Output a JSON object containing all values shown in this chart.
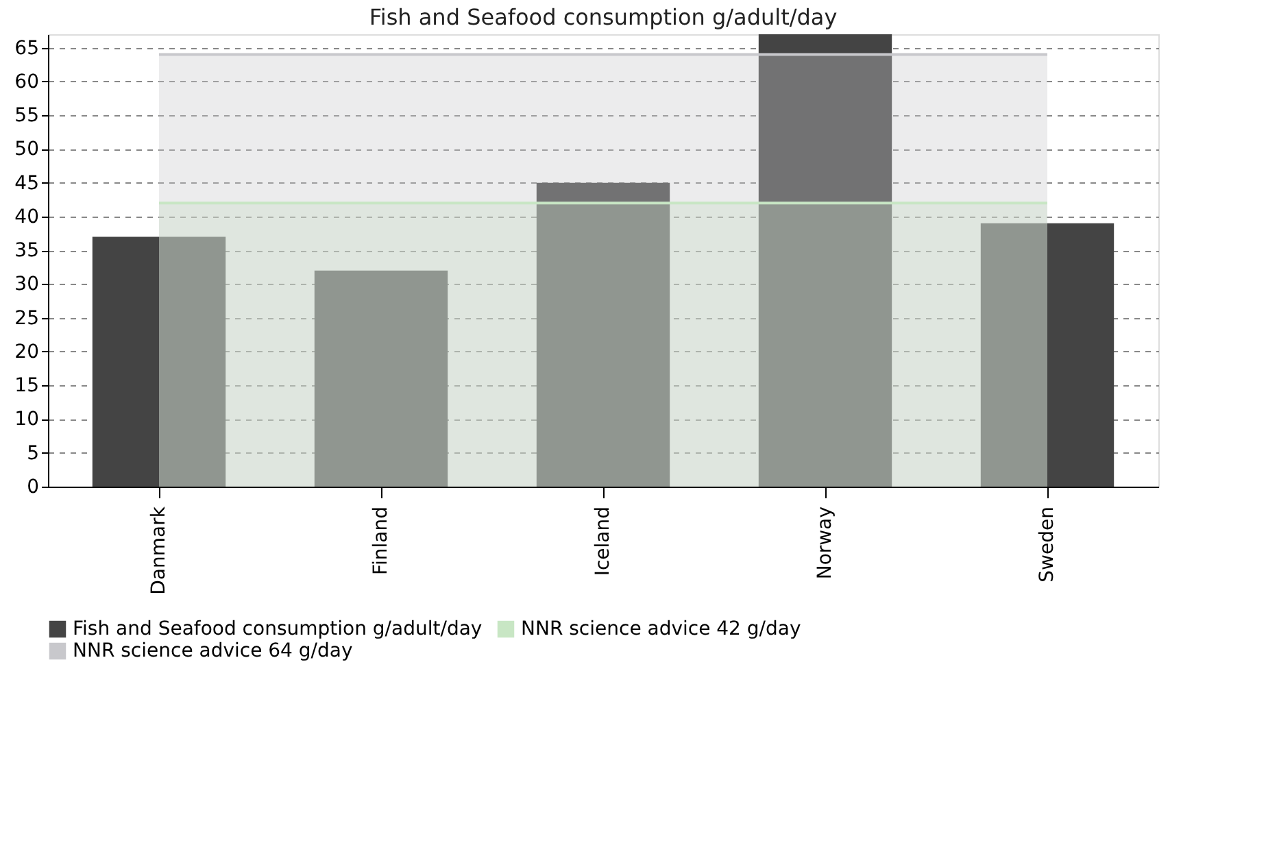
{
  "chart_data": {
    "type": "bar",
    "title": "Fish and Seafood consumption g/adult/day",
    "categories": [
      "Danmark",
      "Finland",
      "Iceland",
      "Norway",
      "Sweden"
    ],
    "series": [
      {
        "name": "Fish and Seafood consumption g/adult/day",
        "color": "#444444",
        "values": [
          37,
          32,
          45,
          67,
          39
        ]
      }
    ],
    "bands": [
      {
        "axis": "y",
        "from": 0,
        "to": 42,
        "label": "NNR science advice 42 g/day",
        "color": "#c8e6c4"
      },
      {
        "axis": "y",
        "from": 0,
        "to": 64,
        "label": "NNR science advice 64 g/day",
        "color": "#c8c8cc"
      }
    ],
    "ylim": [
      0,
      67
    ],
    "yticks": [
      0,
      5,
      10,
      15,
      20,
      25,
      30,
      35,
      40,
      45,
      50,
      55,
      60,
      65
    ],
    "ref_lines": [
      {
        "axis": "y",
        "value": 42,
        "color": "#c8e6c4"
      },
      {
        "axis": "y",
        "value": 64,
        "color": "#c8c8cc"
      }
    ],
    "grid": "y",
    "legend": "bottom"
  }
}
